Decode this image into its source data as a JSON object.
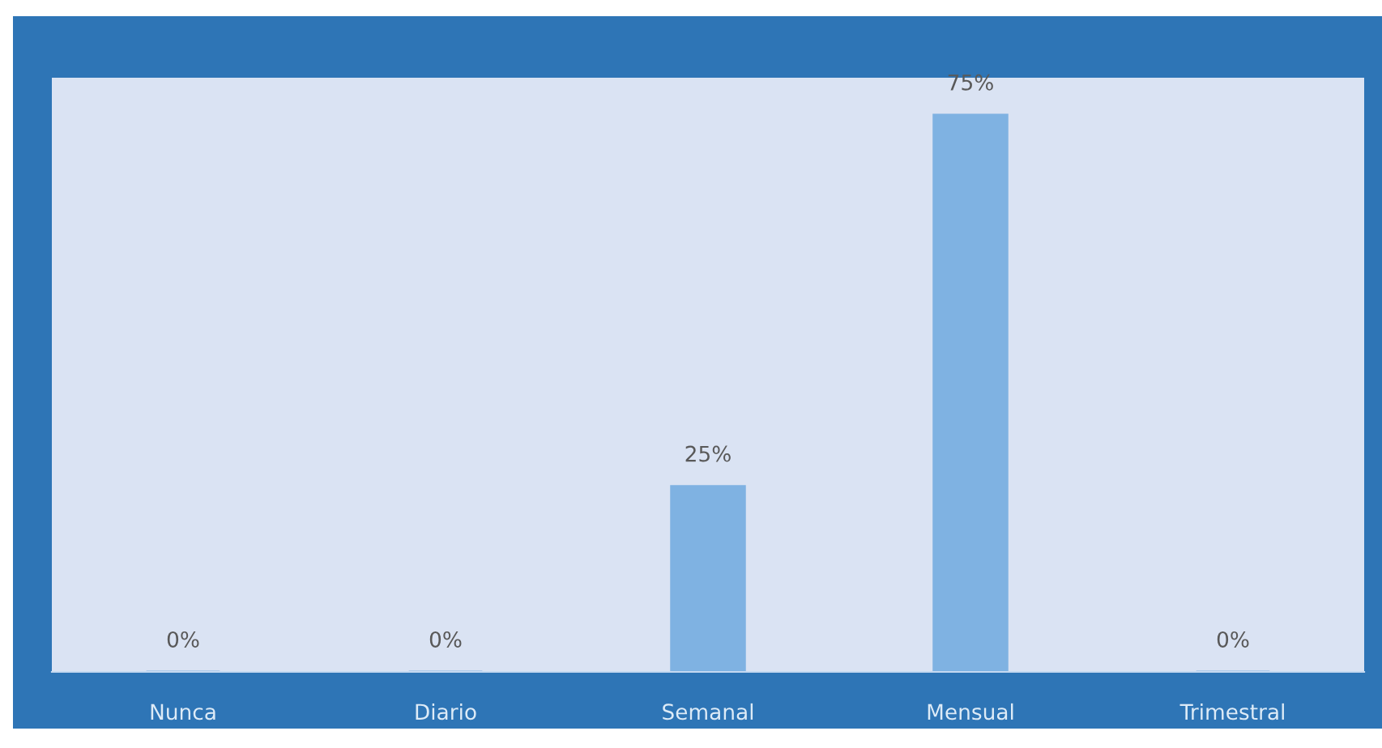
{
  "chart_data": {
    "type": "bar",
    "categories": [
      "Nunca",
      "Diario",
      "Semanal",
      "Mensual",
      "Trimestral"
    ],
    "values": [
      0,
      0,
      25,
      75,
      0
    ],
    "value_labels": [
      "0%",
      "0%",
      "25%",
      "75%",
      "0%"
    ],
    "color": "#7fb2e2",
    "ylim": [
      0,
      80
    ],
    "tick_labels": "x"
  }
}
